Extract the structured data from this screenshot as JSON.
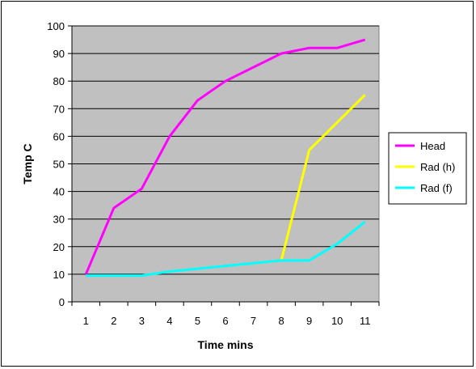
{
  "chart_data": {
    "type": "line",
    "xlabel": "Time mins",
    "ylabel": "Temp C",
    "categories": [
      "1",
      "2",
      "3",
      "4",
      "5",
      "6",
      "7",
      "8",
      "9",
      "10",
      "11"
    ],
    "ylim": [
      0,
      100
    ],
    "yticks": [
      0,
      10,
      20,
      30,
      40,
      50,
      60,
      70,
      80,
      90,
      100
    ],
    "grid": true,
    "legend_position": "right",
    "plot_background": "#c0c0c0",
    "series": [
      {
        "name": "Head",
        "color": "#ff00ff",
        "x": [
          1,
          2,
          3,
          4,
          5,
          6,
          7,
          8,
          9,
          10,
          11
        ],
        "y": [
          10,
          34,
          41,
          60,
          73,
          80,
          85,
          90,
          92,
          92,
          95
        ]
      },
      {
        "name": "Rad (h)",
        "color": "#ffff00",
        "x": [
          8,
          9,
          10,
          11
        ],
        "y": [
          15,
          55,
          65,
          75
        ]
      },
      {
        "name": "Rad (f)",
        "color": "#00ffff",
        "x": [
          1,
          2,
          3,
          4,
          5,
          6,
          7,
          8,
          9,
          10,
          11
        ],
        "y": [
          9.5,
          9.5,
          9.5,
          11,
          12,
          13,
          14,
          15,
          15,
          21,
          29
        ]
      }
    ]
  }
}
